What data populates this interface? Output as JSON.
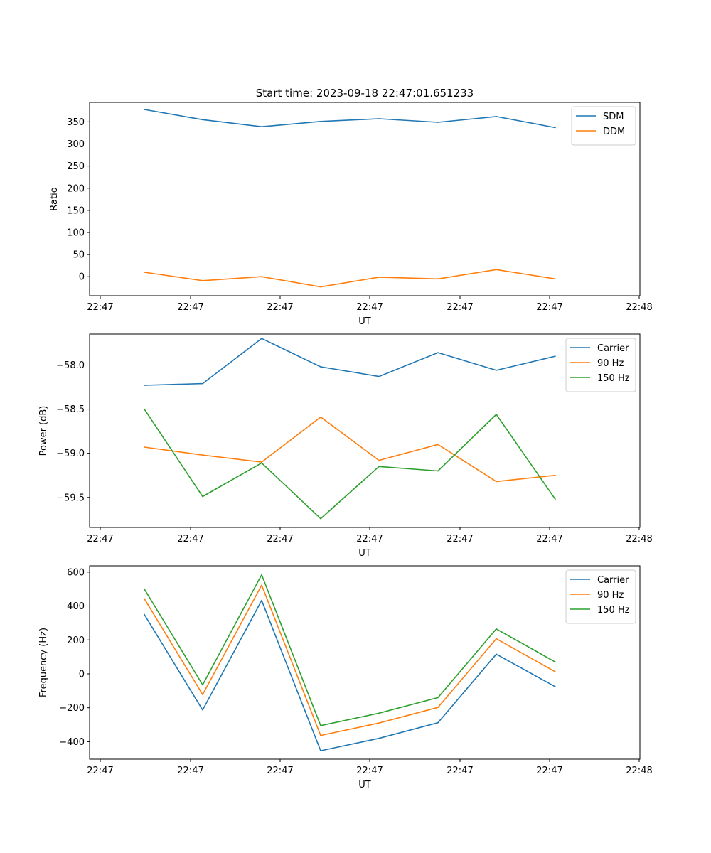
{
  "figure": {
    "title": "Start time: 2023-09-18 22:47:01.651233"
  },
  "chart_data": [
    {
      "type": "line",
      "title": "Start time: 2023-09-18 22:47:01.651233",
      "xlabel": "UT",
      "ylabel": "Ratio",
      "x_tick_labels": [
        "22:47",
        "22:47",
        "22:47",
        "22:47",
        "22:47",
        "22:47",
        "22:48"
      ],
      "y_ticks": [
        0,
        50,
        100,
        150,
        200,
        250,
        300,
        350
      ],
      "y_tick_labels": [
        "0",
        "50",
        "100",
        "150",
        "200",
        "250",
        "300",
        "350"
      ],
      "ylim": [
        -43,
        394
      ],
      "legend_position": "top-right",
      "series": [
        {
          "name": "SDM",
          "color": "#1f77b4",
          "values": [
            378,
            355,
            339,
            351,
            357,
            349,
            362,
            337
          ]
        },
        {
          "name": "DDM",
          "color": "#ff7f0e",
          "values": [
            10,
            -9,
            0,
            -23,
            -1,
            -5,
            16,
            -5
          ]
        }
      ]
    },
    {
      "type": "line",
      "title": "",
      "xlabel": "UT",
      "ylabel": "Power (dB)",
      "x_tick_labels": [
        "22:47",
        "22:47",
        "22:47",
        "22:47",
        "22:47",
        "22:47",
        "22:48"
      ],
      "y_ticks": [
        -58.0,
        -58.5,
        -59.0,
        -59.5
      ],
      "y_tick_labels": [
        "−58.0",
        "−58.5",
        "−59.0",
        "−59.5"
      ],
      "ylim": [
        -59.84,
        -57.65
      ],
      "legend_position": "top-right",
      "series": [
        {
          "name": "Carrier",
          "color": "#1f77b4",
          "values": [
            -58.23,
            -58.21,
            -57.7,
            -58.02,
            -58.13,
            -57.86,
            -58.06,
            -57.9
          ]
        },
        {
          "name": "90 Hz",
          "color": "#ff7f0e",
          "values": [
            -58.93,
            -59.02,
            -59.1,
            -58.59,
            -59.08,
            -58.9,
            -59.32,
            -59.25
          ]
        },
        {
          "name": "150 Hz",
          "color": "#2ca02c",
          "values": [
            -58.5,
            -59.49,
            -59.11,
            -59.74,
            -59.15,
            -59.2,
            -58.56,
            -59.52
          ]
        }
      ]
    },
    {
      "type": "line",
      "title": "",
      "xlabel": "UT",
      "ylabel": "Frequency (Hz)",
      "x_tick_labels": [
        "22:47",
        "22:47",
        "22:47",
        "22:47",
        "22:47",
        "22:47",
        "22:48"
      ],
      "y_ticks": [
        -400,
        -200,
        0,
        200,
        400,
        600
      ],
      "y_tick_labels": [
        "−400",
        "−200",
        "0",
        "200",
        "400",
        "600"
      ],
      "ylim": [
        -503,
        637
      ],
      "legend_position": "top-right",
      "series": [
        {
          "name": "Carrier",
          "color": "#1f77b4",
          "values": [
            350,
            -213,
            433,
            -453,
            -380,
            -288,
            116,
            -76
          ]
        },
        {
          "name": "90 Hz",
          "color": "#ff7f0e",
          "values": [
            443,
            -122,
            523,
            -363,
            -290,
            -198,
            207,
            12
          ]
        },
        {
          "name": "150 Hz",
          "color": "#2ca02c",
          "values": [
            500,
            -65,
            584,
            -305,
            -232,
            -140,
            265,
            70
          ]
        }
      ]
    }
  ]
}
